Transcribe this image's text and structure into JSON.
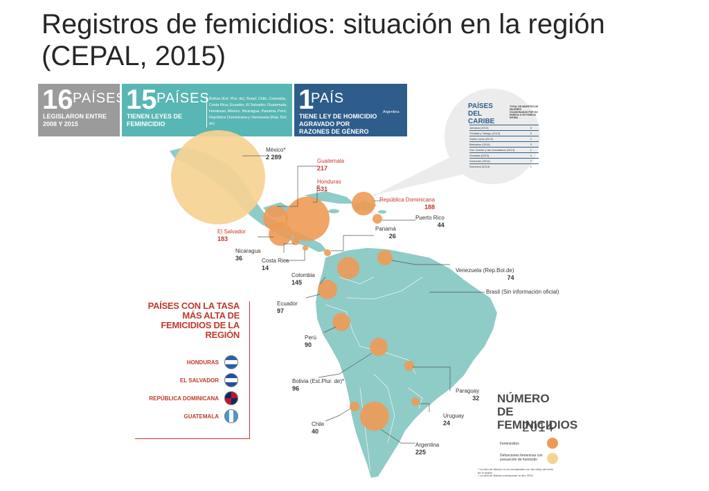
{
  "title": "Registros de femicidios: situación en la región (CEPAL, 2015)",
  "banners": [
    {
      "number": "16",
      "unit": "PAÍSES",
      "subtitle": "LEGISLARON ENTRE 2008 Y 2015"
    },
    {
      "number": "15",
      "unit": "PAÍSES",
      "subtitle": "TIENEN LEYES DE FEMINICIDIO",
      "list": "Bolivia (Est. Plur. de), Brasil, Chile, Colombia, Costa Rica, Ecuador, El Salvador, Guatemala, Honduras, México, Nicaragua, Panamá, Perú, República Dominicana y Venezuela (Rep. Bol. de)"
    },
    {
      "number": "1",
      "unit": "PAÍS",
      "subtitle": "TIENE LEY DE HOMICIDIO AGRAVADO POR RAZONES DE GÉNERO",
      "list": "Argentina"
    }
  ],
  "colors": {
    "femicidio": "#ee9a55",
    "no_comparable": "#f6d393",
    "land": "#8fcbc7",
    "highlight_red": "#c0392b",
    "banner_gray": "#9b9b9b",
    "banner_teal": "#58b6b4",
    "banner_blue": "#2e5d8b"
  },
  "countries": [
    {
      "name": "México*",
      "value": "2 289",
      "highlight": false,
      "type": "no_comparable"
    },
    {
      "name": "Guatemala",
      "value": "217",
      "highlight": true,
      "type": "femicidio"
    },
    {
      "name": "Honduras",
      "value": "531",
      "highlight": true,
      "type": "femicidio"
    },
    {
      "name": "República Dominicana",
      "value": "188",
      "highlight": true,
      "type": "femicidio"
    },
    {
      "name": "Puerto Rico",
      "value": "44",
      "highlight": false,
      "type": "femicidio"
    },
    {
      "name": "Panamá",
      "value": "26",
      "highlight": false,
      "type": "femicidio"
    },
    {
      "name": "El Salvador",
      "value": "183",
      "highlight": true,
      "type": "femicidio"
    },
    {
      "name": "Nicaragua",
      "value": "36",
      "highlight": false,
      "type": "femicidio"
    },
    {
      "name": "Costa Rica",
      "value": "14",
      "highlight": false,
      "type": "femicidio"
    },
    {
      "name": "Venezuela (Rep.Bol.de)",
      "value": "74",
      "highlight": false,
      "type": "femicidio"
    },
    {
      "name": "Colombia",
      "value": "145",
      "highlight": false,
      "type": "femicidio"
    },
    {
      "name": "Brasil (Sin información oficial)",
      "value": "",
      "highlight": false,
      "type": "none"
    },
    {
      "name": "Ecuador",
      "value": "97",
      "highlight": false,
      "type": "femicidio"
    },
    {
      "name": "Perú",
      "value": "90",
      "highlight": false,
      "type": "femicidio"
    },
    {
      "name": "Bolivia (Est.Plur. de)*",
      "value": "96",
      "highlight": false,
      "type": "no_comparable"
    },
    {
      "name": "Paraguay",
      "value": "32",
      "highlight": false,
      "type": "femicidio"
    },
    {
      "name": "Uruguay",
      "value": "24",
      "highlight": false,
      "type": "femicidio"
    },
    {
      "name": "Chile",
      "value": "40",
      "highlight": false,
      "type": "femicidio"
    },
    {
      "name": "Argentina",
      "value": "225",
      "highlight": false,
      "type": "femicidio"
    }
  ],
  "highest_rate": {
    "title": "PAÍSES CON LA TASA MÁS ALTA DE FEMICIDIOS DE LA REGIÓN",
    "countries": [
      "HONDURAS",
      "EL SALVADOR",
      "REPÚBLICA DOMINICANA",
      "GUATEMALA"
    ]
  },
  "caribbean": {
    "title": "PAÍSES DEL CARIBE",
    "column_header": "TOTAL DE MUERTES DE MUJERES OCASIONADAS POR SU PAREJA O EX PAREJA ÍNTIMA",
    "rows": [
      {
        "name": "Jamaica (2013)",
        "value": "9"
      },
      {
        "name": "Trinidad y Tabago (2013)",
        "value": "5"
      },
      {
        "name": "Santa Lucía (2013)",
        "value": "1"
      },
      {
        "name": "Barbados (2014)",
        "value": "3"
      },
      {
        "name": "San Vicente y las Granadinas (2013)",
        "value": "1"
      },
      {
        "name": "Granada (2013)",
        "value": "1"
      },
      {
        "name": "Suriname (2014)",
        "value": "7"
      },
      {
        "name": "Dominica (2014)",
        "value": "1"
      }
    ]
  },
  "legend": {
    "title": "NÚMERO DE FEMINICIDIOS",
    "year": "2014",
    "items": [
      {
        "label": "Feminicidios",
        "type": "femicidio"
      },
      {
        "label": "Defunciones femeninas con presunción de homicidio",
        "type": "no_comparable"
      }
    ],
    "footnotes": [
      "* La cifra de México no es comparable con las cifras del resto de la región.",
      "* La cifra de Bolivia corresponde al año 2015."
    ]
  }
}
